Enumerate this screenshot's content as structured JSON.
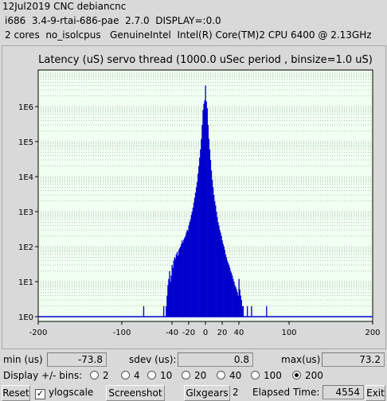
{
  "header": {
    "line1": "12Jul2019 CNC debiancnc",
    "line2": "i686  3.4-9-rtai-686-pae  2.7.0  DISPLAY=:0.0",
    "line3": "2 cores  no_isolcpus   GenuineIntel  Intel(R) Core(TM)2 CPU 6400 @ 2.13GHz"
  },
  "chart_data": {
    "type": "bar",
    "title": "Latency (uS) servo thread (1000.0 uSec period , binsize=1.0 uS)",
    "xlabel": "",
    "ylabel": "",
    "x_ticks": [
      -200,
      -100,
      -40,
      -20,
      0,
      20,
      40,
      100,
      200
    ],
    "y_ticks": [
      "1E0",
      "1E1",
      "1E2",
      "1E3",
      "1E4",
      "1E5",
      "1E6"
    ],
    "y_log": true,
    "xlim": [
      -200,
      200
    ],
    "ylim": [
      1,
      10000000
    ],
    "grid": "horizontal dotted",
    "baseline": 1,
    "series": [
      {
        "x": [
          -74,
          -50,
          -47,
          -46,
          -45,
          -44,
          -43,
          -42,
          -41,
          -40,
          -39,
          -38,
          -37,
          -36,
          -35,
          -34,
          -33,
          -32,
          -31,
          -30,
          -29,
          -28,
          -27,
          -26,
          -25,
          -24,
          -23,
          -22,
          -21,
          -20,
          -19,
          -18,
          -17,
          -16,
          -15,
          -14,
          -13,
          -12,
          -11,
          -10,
          -9,
          -8,
          -7,
          -6,
          -5,
          -4,
          -3,
          -2,
          -1,
          0,
          1,
          2,
          3,
          4,
          5,
          6,
          7,
          8,
          9,
          10,
          11,
          12,
          13,
          14,
          15,
          16,
          17,
          18,
          19,
          20,
          21,
          22,
          23,
          24,
          25,
          26,
          27,
          28,
          29,
          30,
          31,
          32,
          33,
          34,
          35,
          36,
          37,
          38,
          39,
          40,
          41,
          42,
          43,
          44,
          45,
          50,
          55,
          73
        ],
        "values": [
          2,
          2,
          2,
          4,
          8,
          12,
          20,
          10,
          15,
          30,
          25,
          40,
          50,
          45,
          60,
          70,
          55,
          80,
          90,
          100,
          120,
          150,
          130,
          160,
          180,
          200,
          250,
          300,
          280,
          400,
          500,
          600,
          800,
          1000,
          1300,
          1800,
          2500,
          3500,
          5000,
          7000,
          12000,
          20000,
          35000,
          60000,
          120000,
          300000,
          800000,
          1200000,
          1500000,
          4000000,
          1400000,
          900000,
          300000,
          120000,
          60000,
          30000,
          15000,
          8000,
          5000,
          3000,
          2000,
          1500,
          1000,
          700,
          500,
          400,
          300,
          250,
          200,
          150,
          120,
          100,
          80,
          60,
          50,
          40,
          35,
          30,
          25,
          20,
          18,
          15,
          12,
          10,
          8,
          7,
          6,
          5,
          4,
          12,
          6,
          4,
          3,
          2,
          2,
          2,
          2,
          2
        ]
      }
    ]
  },
  "stats": {
    "min_label": "min (us)",
    "min_value": "-73.8",
    "sdev_label": "sdev (us):",
    "sdev_value": "0.8",
    "max_label": "max(us)",
    "max_value": "73.2"
  },
  "bins": {
    "label": "Display +/- bins:",
    "options": [
      "2",
      "4",
      "10",
      "20",
      "40",
      "100",
      "200"
    ],
    "selected": "200"
  },
  "footer": {
    "reset": "Reset",
    "ylogscale": "ylogscale",
    "ylogscale_checked": "✓",
    "screenshot": "Screenshot",
    "glxgears": "Glxgears",
    "glxgears_count": "2",
    "elapsed_label": "Elapsed Time:",
    "elapsed_value": "4554",
    "exit": "Exit"
  },
  "colors": {
    "bars": "#0000cc",
    "plot_bg": "#f0fff0",
    "grid": "#888888"
  }
}
